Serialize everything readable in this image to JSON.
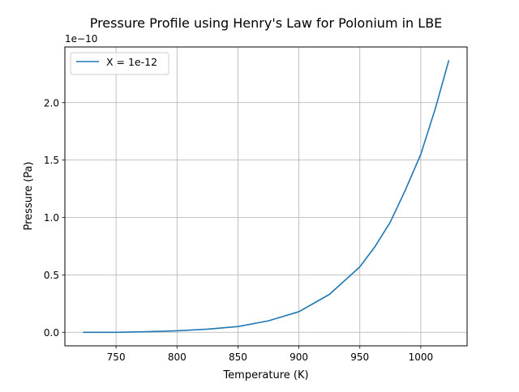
{
  "chart_data": {
    "type": "line",
    "title": "Pressure Profile using Henry's Law for Polonium in LBE",
    "xlabel": "Temperature (K)",
    "ylabel": "Pressure (Pa)",
    "y_offset_label": "1e−10",
    "xlim": [
      708,
      1038
    ],
    "ylim": [
      -0.118,
      2.485
    ],
    "x_ticks": [
      750,
      800,
      850,
      900,
      950,
      1000
    ],
    "x_tick_labels": [
      "750",
      "800",
      "850",
      "900",
      "950",
      "1000"
    ],
    "y_ticks": [
      0.0,
      0.5,
      1.0,
      1.5,
      2.0
    ],
    "y_tick_labels": [
      "0.0",
      "0.5",
      "1.0",
      "1.5",
      "2.0"
    ],
    "grid": true,
    "legend_position": "upper-left",
    "series": [
      {
        "name": "X = 1e-12",
        "color": "#1f77b4",
        "x": [
          723,
          750,
          775,
          800,
          825,
          850,
          875,
          900,
          925,
          950,
          962,
          975,
          987,
          1000,
          1012,
          1023
        ],
        "y": [
          0.0,
          0.0,
          0.005,
          0.013,
          0.027,
          0.05,
          0.1,
          0.18,
          0.33,
          0.57,
          0.74,
          0.96,
          1.23,
          1.55,
          1.95,
          2.37
        ]
      }
    ]
  }
}
